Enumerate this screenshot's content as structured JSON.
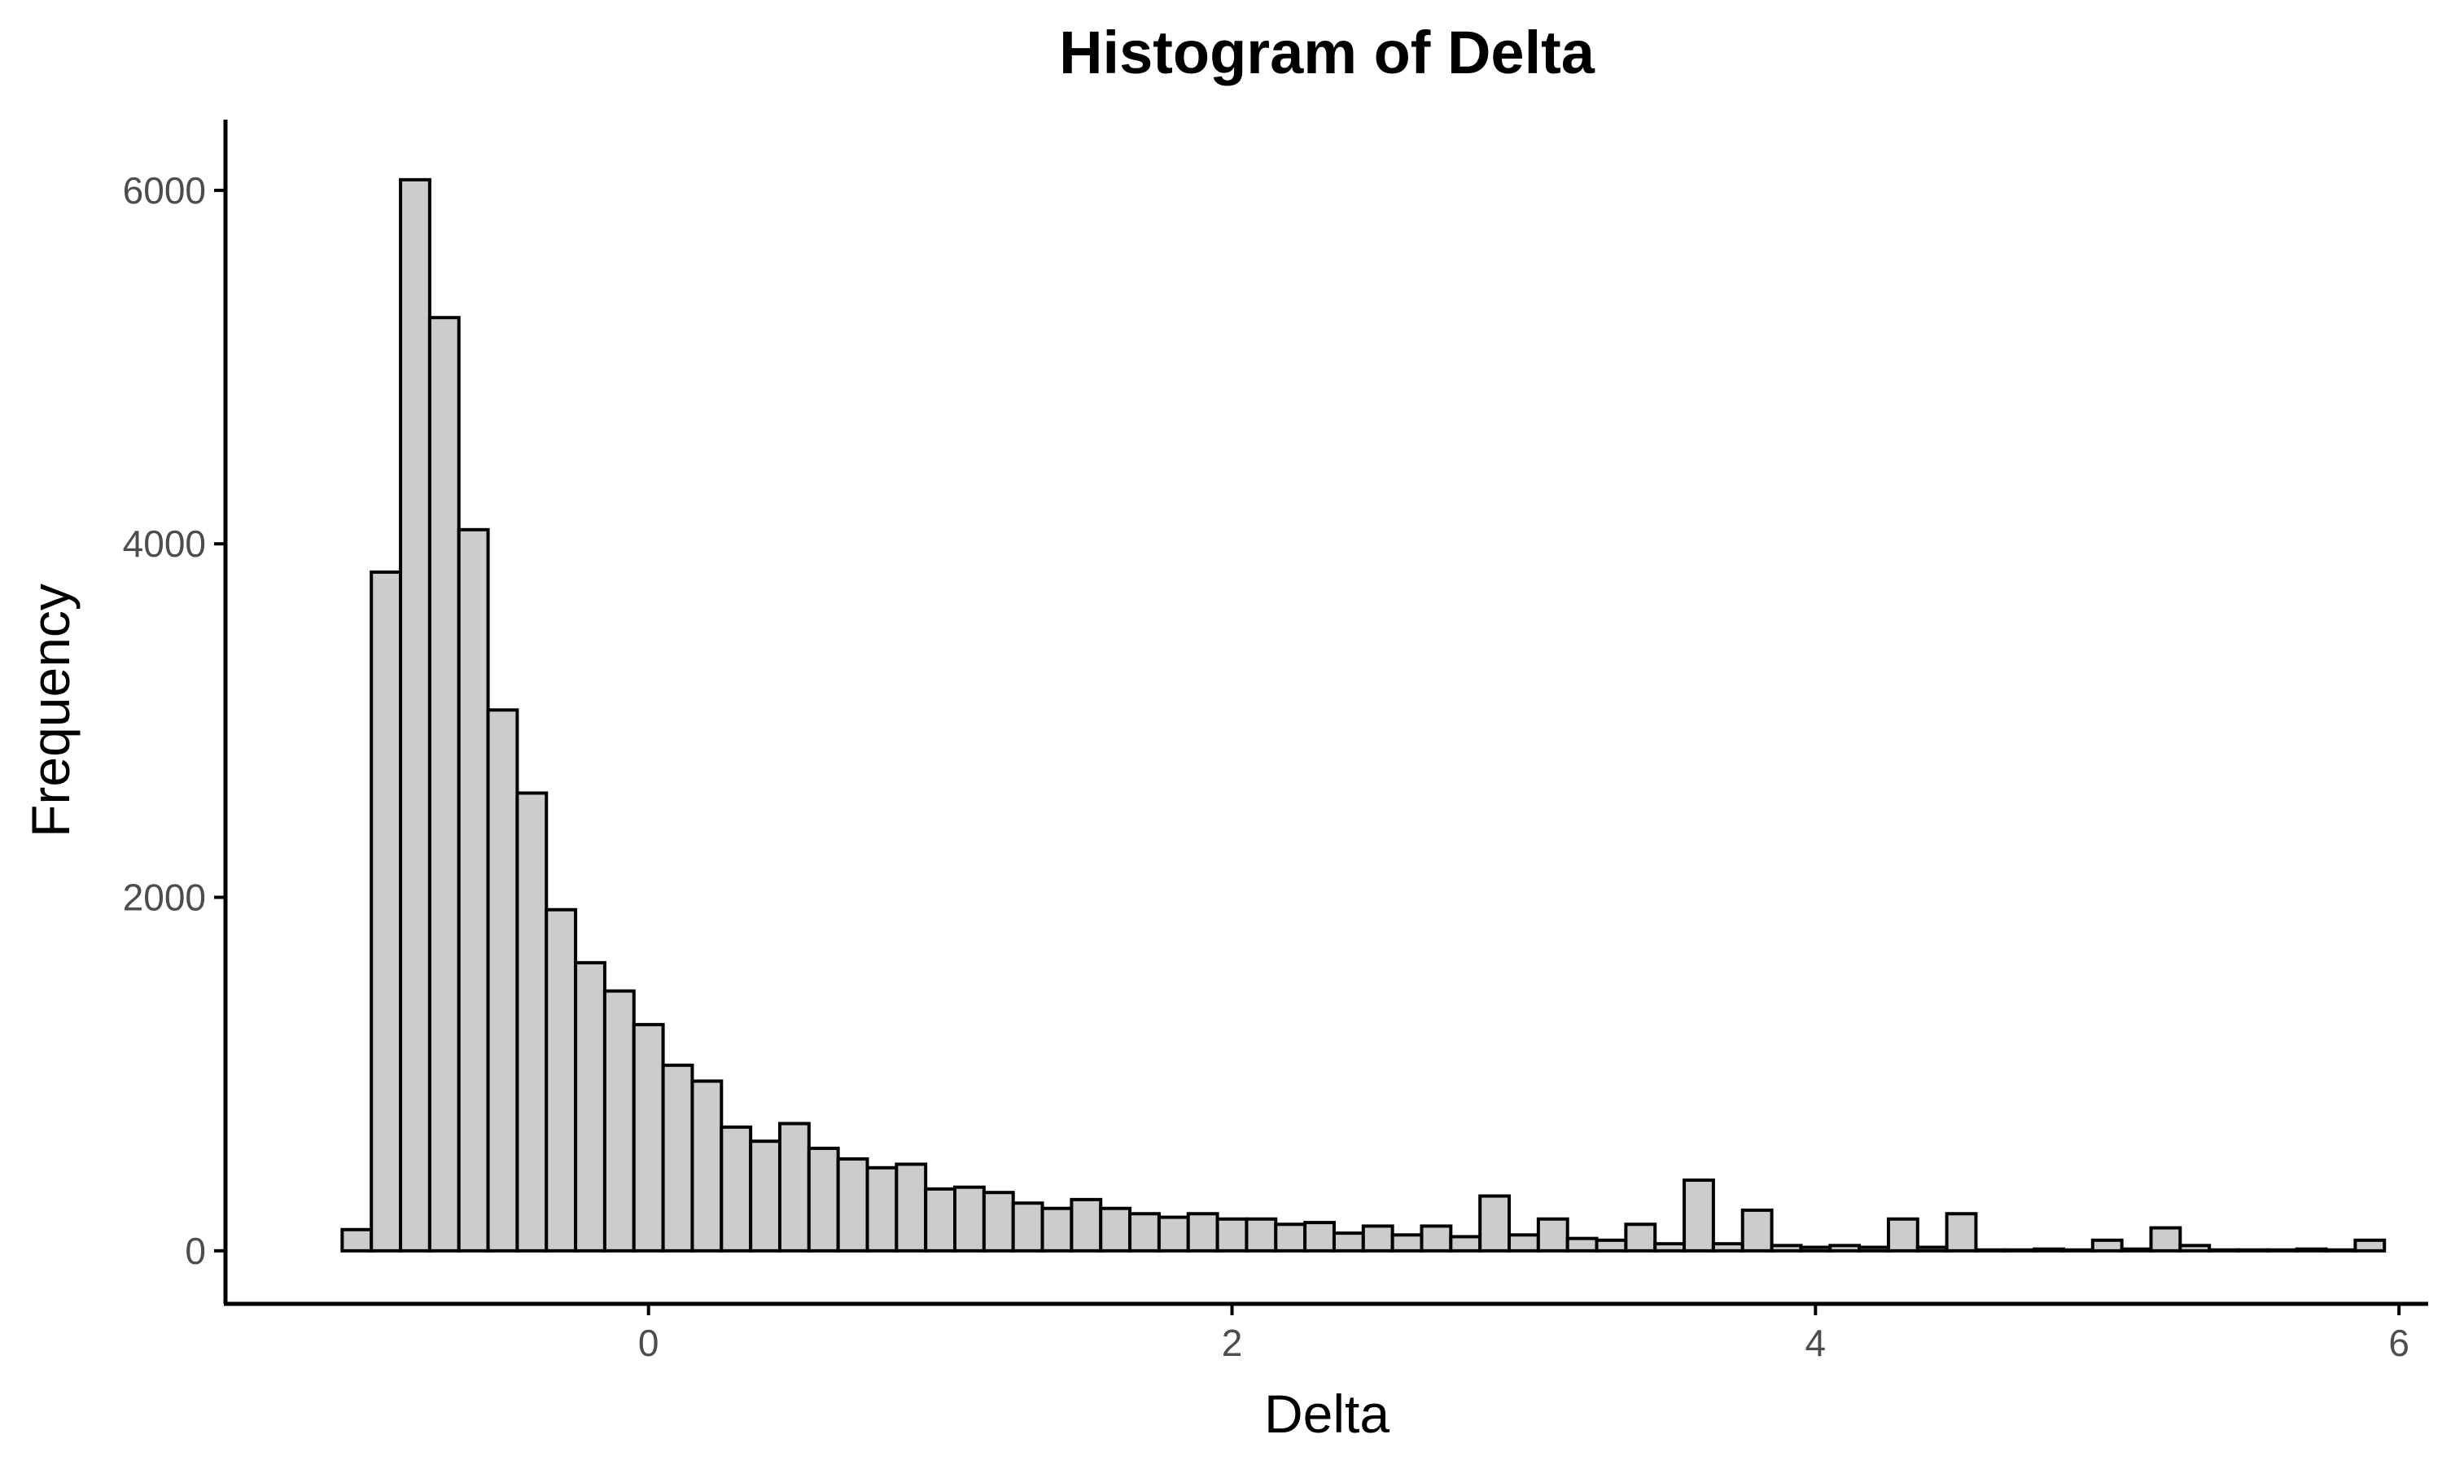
{
  "chart_data": {
    "type": "bar",
    "title": "Histogram of Delta",
    "xlabel": "Delta",
    "ylabel": "Frequency",
    "bin_width": 0.1,
    "bin_start": -1.05,
    "xlim": [
      -1.45,
      6.1
    ],
    "ylim": [
      -300,
      6400
    ],
    "xticks": [
      0,
      2,
      4,
      6
    ],
    "yticks": [
      0,
      2000,
      4000,
      6000
    ],
    "grid": false,
    "bar_color": "#cccccc",
    "bar_edge_color": "#000000",
    "values": [
      120,
      3840,
      6060,
      5280,
      4080,
      3060,
      2590,
      1930,
      1630,
      1470,
      1280,
      1050,
      960,
      700,
      620,
      720,
      580,
      520,
      470,
      490,
      350,
      360,
      330,
      270,
      240,
      290,
      240,
      210,
      190,
      210,
      180,
      180,
      150,
      160,
      100,
      140,
      90,
      140,
      80,
      310,
      90,
      180,
      70,
      60,
      150,
      40,
      400,
      40,
      230,
      30,
      20,
      30,
      20,
      180,
      20,
      210,
      5,
      5,
      10,
      5,
      60,
      10,
      130,
      30,
      5,
      5,
      5,
      10,
      5,
      60
    ]
  }
}
